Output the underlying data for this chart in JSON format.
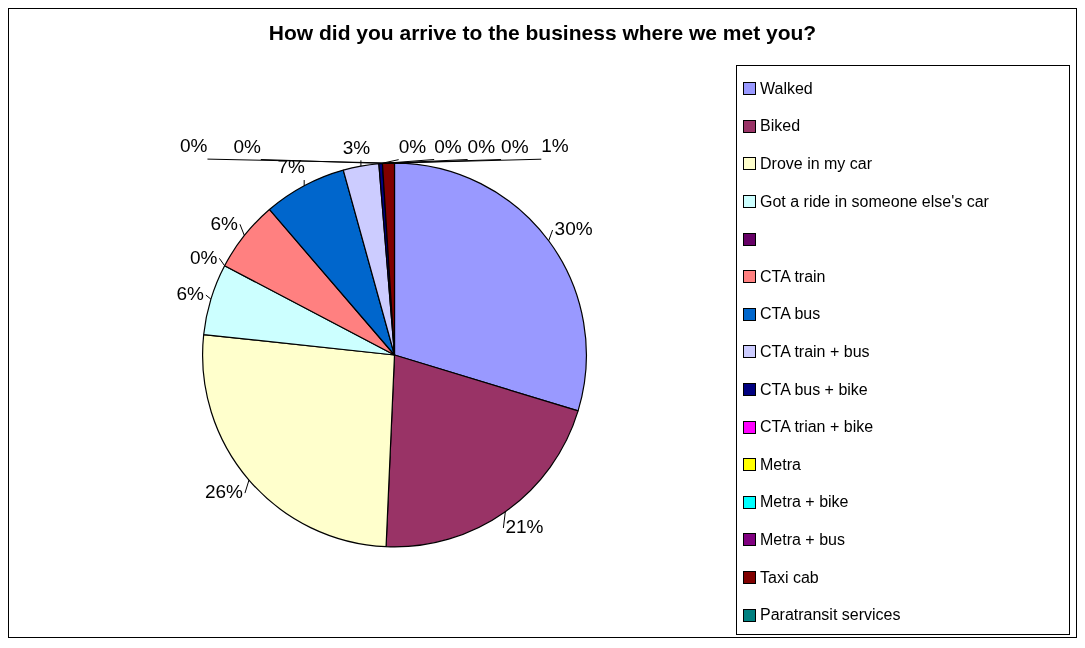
{
  "chart_data": {
    "type": "pie",
    "title": "How did you arrive to the business where we met you?",
    "categories": [
      "Walked",
      "Biked",
      "Drove in my car",
      "Got a ride in someone else's car",
      null,
      "CTA train",
      "CTA bus",
      "CTA train + bus",
      "CTA bus + bike",
      "CTA trian + bike",
      "Metra",
      "Metra + bike",
      "Metra + bus",
      "Taxi cab",
      "Paratransit services"
    ],
    "values": [
      29.7,
      21,
      26,
      6,
      0,
      6,
      7,
      3,
      0.3,
      0,
      0,
      0,
      0,
      1,
      0
    ],
    "colors": [
      "#9999ff",
      "#993366",
      "#ffffcc",
      "#ccffff",
      "#660066",
      "#ff8080",
      "#0066cc",
      "#ccccff",
      "#000080",
      "#ff00ff",
      "#ffff00",
      "#00ffff",
      "#800080",
      "#800000",
      "#008080"
    ],
    "value_labels": [
      "30%",
      "21%",
      "26%",
      "6%",
      "0%",
      "6%",
      "7%",
      "3%",
      "0%",
      "0%",
      "0%",
      "0%",
      "0%",
      "1%",
      "0%"
    ],
    "legend": "right"
  }
}
